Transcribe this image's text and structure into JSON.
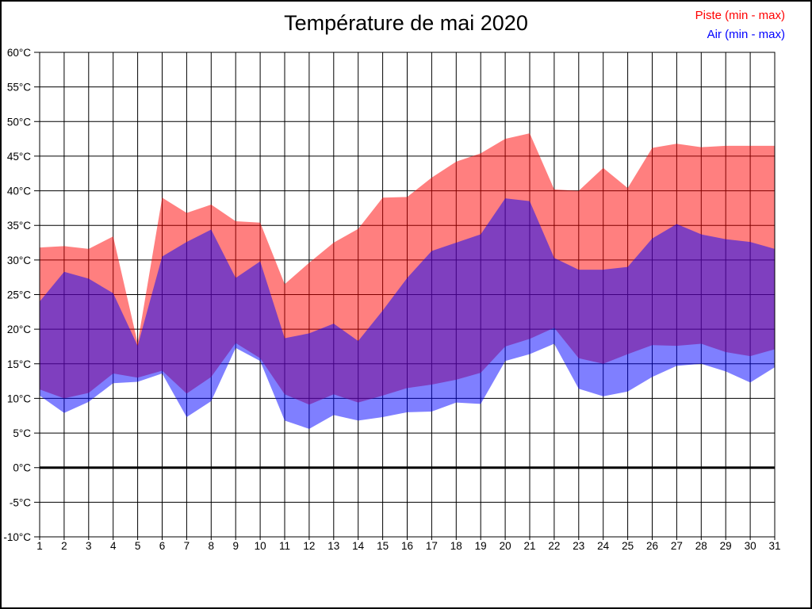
{
  "chart_data": {
    "type": "area",
    "title": "Température de mai 2020",
    "legend_position": "top-right",
    "grid": true,
    "zero_line": true,
    "ylim": [
      -10,
      60
    ],
    "ytick_step": 5,
    "ytick_suffix": "°C",
    "x": [
      1,
      2,
      3,
      4,
      5,
      6,
      7,
      8,
      9,
      10,
      11,
      12,
      13,
      14,
      15,
      16,
      17,
      18,
      19,
      20,
      21,
      22,
      23,
      24,
      25,
      26,
      27,
      28,
      29,
      30,
      31
    ],
    "series": [
      {
        "name": "Piste (min - max)",
        "color": "#ff0000",
        "max": [
          31.8,
          32,
          31.6,
          33.4,
          18,
          39,
          36.8,
          38,
          35.6,
          35.4,
          26.5,
          29.6,
          32.5,
          34.5,
          39,
          39.1,
          41.9,
          44.2,
          45.4,
          47.5,
          48.3,
          40.2,
          40,
          43.3,
          40.4,
          46.2,
          46.8,
          46.3,
          46.5,
          46.5,
          46.5
        ],
        "min": [
          11.3,
          10,
          10.8,
          13.6,
          13,
          14,
          10.7,
          13.1,
          18,
          15.8,
          10.6,
          9.1,
          10.6,
          9.4,
          10.4,
          11.5,
          12,
          12.7,
          13.7,
          17.5,
          18.6,
          20.2,
          15.8,
          15,
          16.4,
          17.7,
          17.6,
          17.9,
          16.7,
          16.1,
          17.1
        ]
      },
      {
        "name": "Air (min - max)",
        "color": "#0000ff",
        "max": [
          24,
          28.3,
          27.3,
          25.2,
          17.6,
          30.5,
          32.6,
          34.4,
          27.4,
          29.8,
          18.7,
          19.4,
          20.8,
          18.3,
          22.7,
          27.4,
          31.3,
          32.5,
          33.7,
          38.9,
          38.5,
          30.3,
          28.6,
          28.6,
          29,
          33.1,
          35.2,
          33.7,
          33,
          32.6,
          31.6
        ],
        "min": [
          10.4,
          7.9,
          9.5,
          12.2,
          12.4,
          13.6,
          7.3,
          9.6,
          17.3,
          15.4,
          6.8,
          5.6,
          7.6,
          6.8,
          7.3,
          8,
          8.1,
          9.4,
          9.2,
          15.4,
          16.4,
          17.9,
          11.4,
          10.3,
          11,
          13.1,
          14.7,
          15,
          13.9,
          12.3,
          14.5
        ]
      }
    ]
  }
}
